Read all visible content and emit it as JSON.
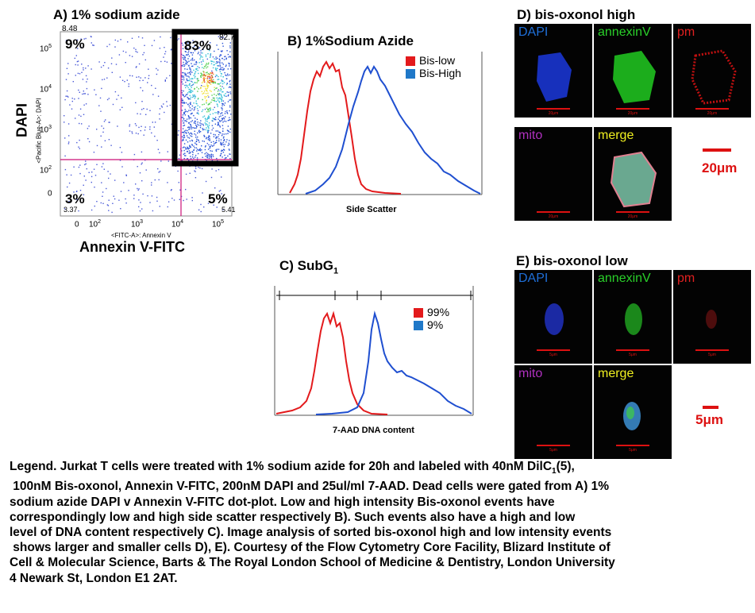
{
  "panelA": {
    "title": "A) 1% sodium azide",
    "ylabel": "DAPI",
    "ylabel_small": "<Pacific Blue-A>: DAPI",
    "xlabel": "Annexin V-FITC",
    "xlabel_small": "<FITC-A>: Annexin V",
    "q_ul": "9%",
    "q_ur": "83%",
    "q_ll": "3%",
    "q_lr": "5%",
    "q_ul_small": "8.48",
    "q_ur_small": "82.7",
    "q_ll_small": "3.37",
    "q_lr_small": "5.41",
    "yticks": [
      {
        "base": "10",
        "exp": "5"
      },
      {
        "base": "10",
        "exp": "4"
      },
      {
        "base": "10",
        "exp": "3"
      },
      {
        "base": "10",
        "exp": "2"
      },
      {
        "base": "0",
        "exp": ""
      }
    ],
    "xticks": [
      {
        "base": "0",
        "exp": ""
      },
      {
        "base": "10",
        "exp": "2"
      },
      {
        "base": "10",
        "exp": "3"
      },
      {
        "base": "10",
        "exp": "4"
      },
      {
        "base": "10",
        "exp": "5"
      }
    ]
  },
  "panelB": {
    "title": "B) 1%Sodium Azide",
    "xlabel": "Side Scatter",
    "legend": [
      {
        "label": "Bis-low",
        "color": "#e31a1c"
      },
      {
        "label": "Bis-High",
        "color": "#1f78c8"
      }
    ]
  },
  "panelC": {
    "title_main": "C) SubG",
    "title_sub": "1",
    "xlabel": "7-AAD DNA content",
    "legend": [
      {
        "label": "99%",
        "color": "#e31a1c"
      },
      {
        "label": "9%",
        "color": "#1f78c8"
      }
    ]
  },
  "panelD": {
    "title": "D) bis-oxonol high",
    "labels": {
      "dapi": "DAPI",
      "annexin": "annexinV",
      "pm": "pm",
      "mito": "mito",
      "merge": "merge"
    },
    "scale_small": "20μm",
    "scale_bar": "20μm"
  },
  "panelE": {
    "title": "E) bis-oxonol low",
    "labels": {
      "dapi": "DAPI",
      "annexin": "annexinV",
      "pm": "pm",
      "mito": "mito",
      "merge": "merge"
    },
    "scale_small": "5μm",
    "scale_bar": "5μm"
  },
  "legend": {
    "line1_pre": "Legend. Jurkat T cells were treated with 1% sodium azide for 20h and labeled with 40nM DilC",
    "line1_sub": "1",
    "line1_post": "(5),",
    "lines": [
      " 100nM Bis-oxonol, Annexin V-FITC, 200nM DAPI and 25ul/ml 7-AAD. Dead cells were gated from A) 1%",
      "sodium azide DAPI v Annexin V-FITC dot-plot. Low and high intensity Bis-oxonol events have",
      "correspondingly low and high side scatter respectively B). Such events also have a high and low",
      "level of DNA content respectively C). Image analysis of sorted bis-oxonol high and low intensity events",
      " shows larger and smaller cells D), E). Courtesy of the Flow Cytometry Core Facility, Blizard Institute of",
      "Cell & Molecular Science, Barts & The Royal London School of Medicine & Dentistry, London University",
      "4 Newark St, London E1 2AT."
    ]
  },
  "colors": {
    "red": "#e31a1c",
    "blue": "#1f4fd0",
    "gate": "#cc1177",
    "scale": "#dd1111"
  }
}
